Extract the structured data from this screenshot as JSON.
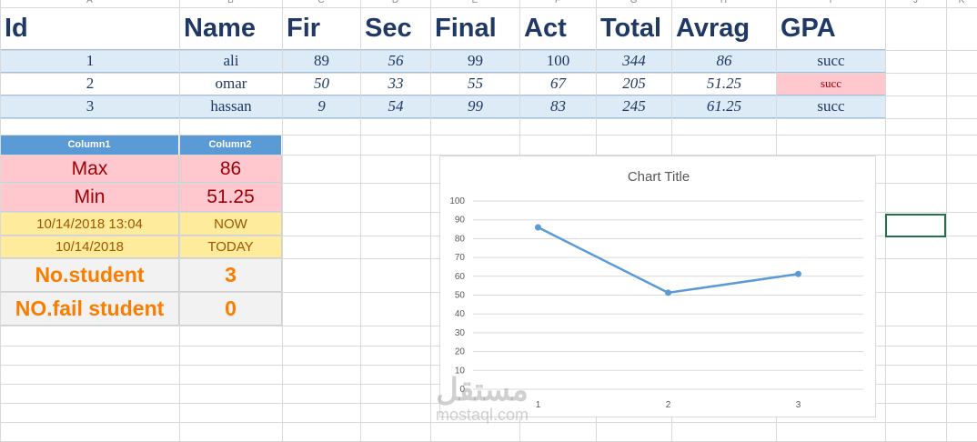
{
  "column_letters": [
    "A",
    "B",
    "C",
    "D",
    "E",
    "F",
    "G",
    "H",
    "I",
    "J",
    "K"
  ],
  "table": {
    "headers": [
      "Id",
      "Name",
      "Fir",
      "Sec",
      "Final",
      "Act",
      "Total",
      "Avrag",
      "GPA"
    ],
    "rows": [
      [
        "1",
        "ali",
        "89",
        "56",
        "99",
        "100",
        "344",
        "86",
        "succ"
      ],
      [
        "2",
        "omar",
        "50",
        "33",
        "55",
        "67",
        "205",
        "51.25",
        "succ"
      ],
      [
        "3",
        "hassan",
        "9",
        "54",
        "99",
        "83",
        "245",
        "61.25",
        "succ"
      ]
    ]
  },
  "summary": {
    "headers": [
      "Column1",
      "Column2"
    ],
    "rows": [
      [
        "Max",
        "86"
      ],
      [
        "Min",
        "51.25"
      ],
      [
        "10/14/2018 13:04",
        "NOW"
      ],
      [
        "10/14/2018",
        "TODAY"
      ],
      [
        "No.student",
        "3"
      ],
      [
        "NO.fail student",
        "0"
      ]
    ]
  },
  "chart_data": {
    "type": "line",
    "title": "Chart Title",
    "categories": [
      "1",
      "2",
      "3"
    ],
    "values": [
      86,
      51.25,
      61.25
    ],
    "color": "#5b9bd5",
    "ylim": [
      0,
      100
    ],
    "yticks": [
      0,
      10,
      20,
      30,
      40,
      50,
      60,
      70,
      80,
      90,
      100
    ],
    "grid": true
  },
  "watermark": [
    "مستقل",
    "mostaql.com"
  ]
}
